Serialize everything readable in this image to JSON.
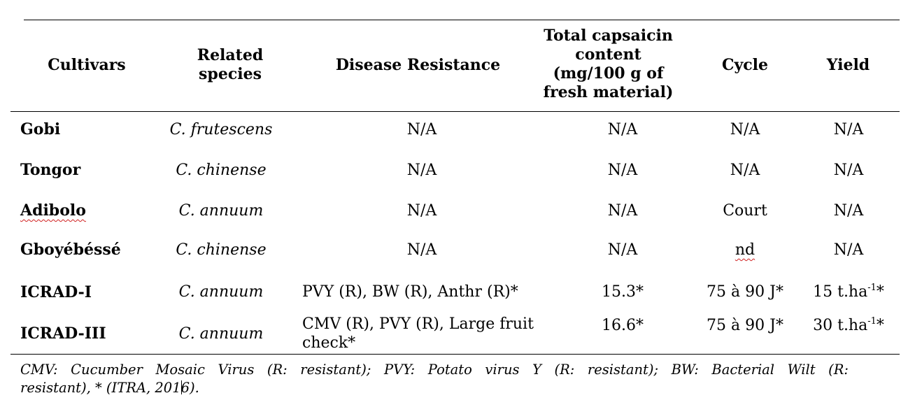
{
  "table": {
    "headers": {
      "cultivars": "Cultivars",
      "related_species_1": "Related",
      "related_species_2": "species",
      "disease_resistance": "Disease Resistance",
      "capsaicin_1": "Total capsaicin",
      "capsaicin_2": "content",
      "capsaicin_3": "(mg/100 g of",
      "capsaicin_4": "fresh material)",
      "cycle": "Cycle",
      "yield": "Yield"
    },
    "rows": [
      {
        "cultivar": "Gobi",
        "species": "C. frutescens",
        "disease": "N/A",
        "capsaicin": "N/A",
        "cycle": "N/A",
        "yield": "N/A"
      },
      {
        "cultivar": "Tongor",
        "species": "C. chinense",
        "disease": "N/A",
        "capsaicin": "N/A",
        "cycle": "N/A",
        "yield": "N/A"
      },
      {
        "cultivar": "Adibolo",
        "species": "C. annuum",
        "disease": "N/A",
        "capsaicin": "N/A",
        "cycle": "Court",
        "yield": "N/A"
      },
      {
        "cultivar": "Gboyébéssé",
        "species": "C. chinense",
        "disease": "N/A",
        "capsaicin": "N/A",
        "cycle": "nd",
        "yield": "N/A"
      },
      {
        "cultivar": "ICRAD-I",
        "species": "C. annuum",
        "disease": "PVY (R), BW (R), Anthr (R)*",
        "capsaicin": "15.3*",
        "cycle": "75 à 90 J*",
        "yield_main": "15 t.ha",
        "yield_sup": "-1",
        "yield_tail": "*"
      },
      {
        "cultivar": "ICRAD-III",
        "species": "C. annuum",
        "disease_1": "CMV (R), PVY (R), Large fruit",
        "disease_2": "check*",
        "capsaicin": "16.6*",
        "cycle": "75 à 90 J*",
        "yield_main": "30 t.ha",
        "yield_sup": "-1",
        "yield_tail": "*"
      }
    ],
    "footnote_1": "CMV: Cucumber Mosaic Virus (R: resistant); PVY: Potato virus Y (R: resistant); BW: Bacterial Wilt (R:",
    "footnote_2a": "resistant), * (ITRA, 201",
    "footnote_2b": "6)."
  }
}
